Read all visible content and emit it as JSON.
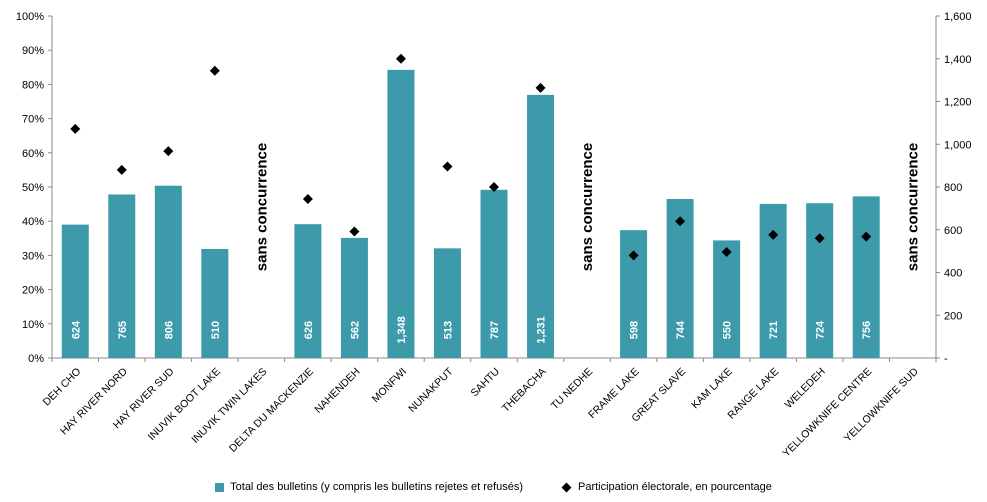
{
  "chart_data": {
    "type": "bar",
    "categories": [
      "DEH CHO",
      "HAY RIVER NORD",
      "HAY RIVER SUD",
      "INUVIK BOOT LAKE",
      "INUVIK TWIN LAKES",
      "DELTA DU MACKENZIE",
      "NAHENDEH",
      "MONFWI",
      "NUNAKPUT",
      "SAHTU",
      "THEBACHA",
      "TU NEDHE",
      "FRAME LAKE",
      "GREAT SLAVE",
      "KAM LAKE",
      "RANGE LAKE",
      "WELEDEH",
      "YELLOWKNIFE CENTRE",
      "YELLOWKNIFE SUD"
    ],
    "series": [
      {
        "name": "Total des bulletins (y compris les bulletins rejetes et refusés)",
        "type": "bar",
        "axis": "right",
        "color": "#3c9aab",
        "values": [
          624,
          765,
          806,
          510,
          null,
          626,
          562,
          1348,
          513,
          787,
          1231,
          null,
          598,
          744,
          550,
          721,
          724,
          756,
          null
        ],
        "labels": [
          "624",
          "765",
          "806",
          "510",
          "",
          "626",
          "562",
          "1,348",
          "513",
          "787",
          "1,231",
          "",
          "598",
          "744",
          "550",
          "721",
          "724",
          "756",
          ""
        ]
      },
      {
        "name": "Participation électorale, en pourcentage",
        "type": "scatter",
        "axis": "left",
        "color": "#000000",
        "marker": "diamond",
        "values": [
          67,
          55,
          60.5,
          84,
          null,
          46.5,
          37,
          87.5,
          56,
          50,
          79,
          null,
          30,
          40,
          31,
          36,
          35,
          35.5,
          null
        ]
      }
    ],
    "uncontested_label": "sans concurrence",
    "uncontested_categories": [
      "INUVIK TWIN LAKES",
      "TU NEDHE",
      "YELLOWKNIFE SUD"
    ],
    "left_axis": {
      "ticks": [
        "0%",
        "10%",
        "20%",
        "30%",
        "40%",
        "50%",
        "60%",
        "70%",
        "80%",
        "90%",
        "100%"
      ],
      "range": [
        0,
        100
      ]
    },
    "right_axis": {
      "ticks": [
        "-",
        "200",
        "400",
        "600",
        "800",
        "1,000",
        "1,200",
        "1,400",
        "1,600"
      ],
      "range": [
        0,
        1600
      ]
    },
    "grid": false,
    "legend_position": "bottom"
  }
}
